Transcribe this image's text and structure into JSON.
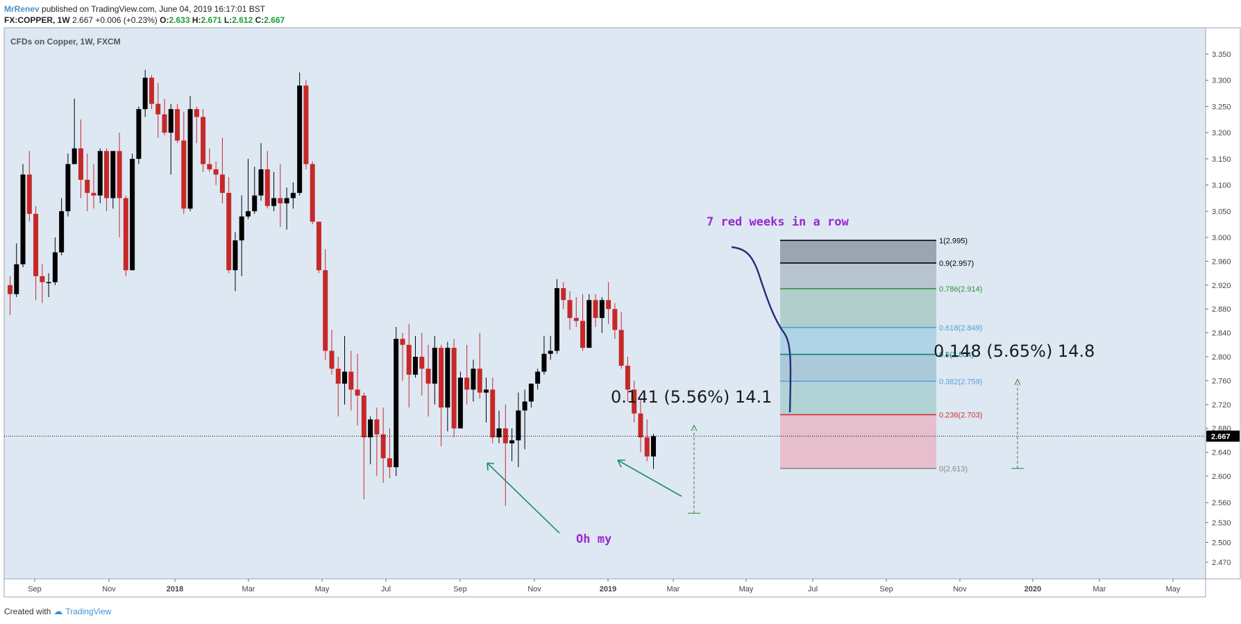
{
  "header": {
    "author": "MrRenev",
    "published": "published on TradingView.com, June 04, 2019 16:17:01 BST",
    "symbol": "FX:COPPER, 1W",
    "last": "2.667",
    "change": "+0.006 (+0.23%)",
    "o_label": "O:",
    "o": "2.633",
    "h_label": "H:",
    "h": "2.671",
    "l_label": "L:",
    "l": "2.612",
    "c_label": "C:",
    "c": "2.667"
  },
  "footer": {
    "created_with": "Created with",
    "brand": "TradingView"
  },
  "colors": {
    "up": "#000000",
    "down": "#c62828",
    "background": "#dde8f3",
    "annotation": "#9c27d0",
    "arrow": "#1e8a6a"
  },
  "chart_data": {
    "type": "candlestick",
    "title": "CFDs on Copper, 1W, FXCM",
    "price_label": "2.667",
    "y_ticks": [
      "3.350",
      "3.300",
      "3.250",
      "3.200",
      "3.150",
      "3.100",
      "3.050",
      "3.000",
      "2.960",
      "2.920",
      "2.880",
      "2.840",
      "2.800",
      "2.760",
      "2.720",
      "2.680",
      "2.640",
      "2.600",
      "2.560",
      "2.530",
      "2.500",
      "2.470"
    ],
    "x_ticks": [
      "Sep",
      "Nov",
      "2018",
      "Mar",
      "May",
      "Jul",
      "Sep",
      "Nov",
      "2019",
      "Mar",
      "May",
      "Jul",
      "Sep",
      "Nov",
      "2020",
      "Mar",
      "May"
    ],
    "candles": [
      [
        2.92,
        2.905,
        2.935,
        2.87
      ],
      [
        2.905,
        2.955,
        2.99,
        2.9
      ],
      [
        2.955,
        3.12,
        3.14,
        2.95
      ],
      [
        3.12,
        3.045,
        3.165,
        3.03
      ],
      [
        3.045,
        2.935,
        3.06,
        2.895
      ],
      [
        2.935,
        2.925,
        2.955,
        2.89
      ],
      [
        2.925,
        2.925,
        2.94,
        2.9
      ],
      [
        2.925,
        2.975,
        3.0,
        2.92
      ],
      [
        2.975,
        3.05,
        3.075,
        2.97
      ],
      [
        3.05,
        3.14,
        3.16,
        3.04
      ],
      [
        3.14,
        3.17,
        3.265,
        3.14
      ],
      [
        3.17,
        3.11,
        3.225,
        3.075
      ],
      [
        3.11,
        3.085,
        3.16,
        3.05
      ],
      [
        3.085,
        3.08,
        3.14,
        3.055
      ],
      [
        3.08,
        3.165,
        3.17,
        3.065
      ],
      [
        3.165,
        3.075,
        3.17,
        3.05
      ],
      [
        3.075,
        3.165,
        3.165,
        3.055
      ],
      [
        3.165,
        3.075,
        3.2,
        3.0
      ],
      [
        3.075,
        2.945,
        3.08,
        2.935
      ],
      [
        2.945,
        3.15,
        3.16,
        2.945
      ],
      [
        3.15,
        3.245,
        3.25,
        3.14
      ],
      [
        3.245,
        3.305,
        3.32,
        3.23
      ],
      [
        3.305,
        3.255,
        3.31,
        3.245
      ],
      [
        3.255,
        3.235,
        3.295,
        3.19
      ],
      [
        3.235,
        3.2,
        3.265,
        3.195
      ],
      [
        3.2,
        3.245,
        3.255,
        3.12
      ],
      [
        3.245,
        3.185,
        3.255,
        3.18
      ],
      [
        3.185,
        3.055,
        3.24,
        3.045
      ],
      [
        3.055,
        3.245,
        3.27,
        3.05
      ],
      [
        3.245,
        3.23,
        3.25,
        3.18
      ],
      [
        3.23,
        3.14,
        3.245,
        3.125
      ],
      [
        3.14,
        3.13,
        3.17,
        3.125
      ],
      [
        3.13,
        3.12,
        3.145,
        3.1
      ],
      [
        3.12,
        3.085,
        3.19,
        3.065
      ],
      [
        3.085,
        2.945,
        3.115,
        2.94
      ],
      [
        2.945,
        2.995,
        3.01,
        2.91
      ],
      [
        2.995,
        3.04,
        3.08,
        2.935
      ],
      [
        3.04,
        3.05,
        3.15,
        3.035
      ],
      [
        3.05,
        3.08,
        3.135,
        3.045
      ],
      [
        3.08,
        3.13,
        3.18,
        3.07
      ],
      [
        3.13,
        3.06,
        3.165,
        3.055
      ],
      [
        3.06,
        3.075,
        3.125,
        3.05
      ],
      [
        3.075,
        3.065,
        3.14,
        3.02
      ],
      [
        3.065,
        3.075,
        3.095,
        3.015
      ],
      [
        3.075,
        3.085,
        3.105,
        3.055
      ],
      [
        3.085,
        3.29,
        3.315,
        3.08
      ],
      [
        3.29,
        3.14,
        3.3,
        3.13
      ],
      [
        3.14,
        3.03,
        3.145,
        3.025
      ],
      [
        3.03,
        2.945,
        3.03,
        2.94
      ],
      [
        2.945,
        2.81,
        2.98,
        2.795
      ],
      [
        2.81,
        2.78,
        2.845,
        2.77
      ],
      [
        2.78,
        2.755,
        2.8,
        2.7
      ],
      [
        2.755,
        2.775,
        2.835,
        2.72
      ],
      [
        2.775,
        2.745,
        2.81,
        2.71
      ],
      [
        2.745,
        2.735,
        2.805,
        2.685
      ],
      [
        2.735,
        2.665,
        2.74,
        2.565
      ],
      [
        2.665,
        2.695,
        2.7,
        2.62
      ],
      [
        2.695,
        2.67,
        2.715,
        2.6
      ],
      [
        2.67,
        2.63,
        2.715,
        2.59
      ],
      [
        2.63,
        2.615,
        2.68,
        2.597
      ],
      [
        2.615,
        2.83,
        2.85,
        2.6
      ],
      [
        2.83,
        2.82,
        2.84,
        2.76
      ],
      [
        2.82,
        2.77,
        2.855,
        2.715
      ],
      [
        2.77,
        2.8,
        2.835,
        2.765
      ],
      [
        2.8,
        2.78,
        2.84,
        2.735
      ],
      [
        2.78,
        2.755,
        2.82,
        2.7
      ],
      [
        2.755,
        2.815,
        2.835,
        2.72
      ],
      [
        2.815,
        2.715,
        2.82,
        2.65
      ],
      [
        2.715,
        2.815,
        2.825,
        2.675
      ],
      [
        2.815,
        2.68,
        2.83,
        2.665
      ],
      [
        2.68,
        2.765,
        2.775,
        2.68
      ],
      [
        2.765,
        2.745,
        2.82,
        2.72
      ],
      [
        2.745,
        2.78,
        2.795,
        2.725
      ],
      [
        2.78,
        2.74,
        2.84,
        2.73
      ],
      [
        2.74,
        2.745,
        2.765,
        2.69
      ],
      [
        2.745,
        2.665,
        2.765,
        2.655
      ],
      [
        2.665,
        2.68,
        2.71,
        2.655
      ],
      [
        2.68,
        2.655,
        2.72,
        2.555
      ],
      [
        2.655,
        2.66,
        2.68,
        2.625
      ],
      [
        2.66,
        2.71,
        2.74,
        2.615
      ],
      [
        2.71,
        2.725,
        2.745,
        2.645
      ],
      [
        2.725,
        2.755,
        2.755,
        2.715
      ],
      [
        2.755,
        2.775,
        2.78,
        2.745
      ],
      [
        2.775,
        2.805,
        2.835,
        2.77
      ],
      [
        2.805,
        2.81,
        2.835,
        2.795
      ],
      [
        2.81,
        2.915,
        2.93,
        2.805
      ],
      [
        2.915,
        2.895,
        2.925,
        2.88
      ],
      [
        2.895,
        2.865,
        2.91,
        2.845
      ],
      [
        2.865,
        2.86,
        2.9,
        2.85
      ],
      [
        2.86,
        2.815,
        2.905,
        2.81
      ],
      [
        2.815,
        2.895,
        2.905,
        2.825
      ],
      [
        2.895,
        2.865,
        2.905,
        2.85
      ],
      [
        2.865,
        2.895,
        2.9,
        2.84
      ],
      [
        2.895,
        2.88,
        2.925,
        2.855
      ],
      [
        2.88,
        2.845,
        2.89,
        2.83
      ],
      [
        2.845,
        2.785,
        2.875,
        2.78
      ],
      [
        2.785,
        2.745,
        2.8,
        2.725
      ],
      [
        2.745,
        2.705,
        2.76,
        2.69
      ],
      [
        2.705,
        2.665,
        2.73,
        2.64
      ],
      [
        2.665,
        2.633,
        2.695,
        2.625
      ],
      [
        2.633,
        2.667,
        2.671,
        2.612
      ]
    ],
    "fibonacci": [
      {
        "label": "1",
        "value": "2.995",
        "color": "#000000"
      },
      {
        "label": "0.9",
        "value": "2.957",
        "color": "#000000"
      },
      {
        "label": "0.786",
        "value": "2.914",
        "color": "#388e3c"
      },
      {
        "label": "0.618",
        "value": "2.849",
        "color": "#4aa3d4"
      },
      {
        "label": "0.5",
        "value": "2.804",
        "color": "#138080"
      },
      {
        "label": "0.382",
        "value": "2.759",
        "color": "#5b9be0"
      },
      {
        "label": "0.236",
        "value": "2.703",
        "color": "#d32f2f"
      },
      {
        "label": "0",
        "value": "2.613",
        "color": "#888888"
      }
    ],
    "annotations": {
      "red_weeks": "7 red weeks in a row",
      "oh_my": "Oh my",
      "measure1": "0.141 (5.56%) 14.1",
      "measure2": "0.148 (5.65%) 14.8"
    }
  }
}
